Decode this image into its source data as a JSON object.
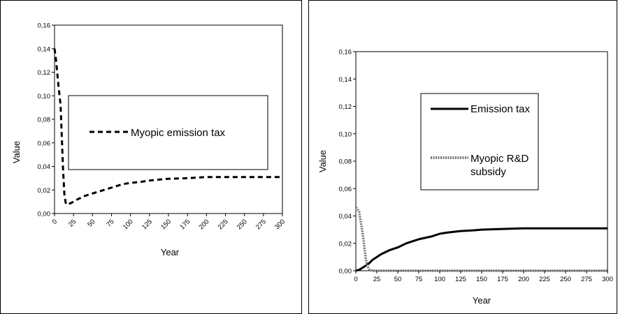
{
  "chart_data": [
    {
      "type": "line",
      "title": "",
      "xlabel": "Year",
      "ylabel": "Value",
      "xlim": [
        0,
        300
      ],
      "ylim": [
        0,
        0.16
      ],
      "x_ticks": [
        "0",
        "25",
        "50",
        "75",
        "100",
        "125",
        "150",
        "175",
        "200",
        "225",
        "250",
        "275",
        "300"
      ],
      "y_ticks": [
        "0,00",
        "0,02",
        "0,04",
        "0,06",
        "0,08",
        "0,10",
        "0,12",
        "0,14",
        "0,16"
      ],
      "legend_placement": "center",
      "grid": false,
      "series": [
        {
          "name": "Myopic emission tax",
          "style": "dashed",
          "color": "#000000",
          "x": [
            0,
            2,
            5,
            8,
            11,
            13,
            15,
            18,
            22,
            30,
            40,
            50,
            60,
            75,
            90,
            100,
            115,
            125,
            140,
            150,
            175,
            200,
            225,
            250,
            275,
            300
          ],
          "y": [
            0.14,
            0.13,
            0.11,
            0.092,
            0.04,
            0.016,
            0.008,
            0.008,
            0.009,
            0.012,
            0.015,
            0.017,
            0.019,
            0.022,
            0.025,
            0.026,
            0.027,
            0.028,
            0.029,
            0.0295,
            0.03,
            0.031,
            0.031,
            0.031,
            0.031,
            0.031
          ]
        }
      ]
    },
    {
      "type": "line",
      "title": "",
      "xlabel": "Year",
      "ylabel": "Value",
      "xlim": [
        0,
        300
      ],
      "ylim": [
        0,
        0.16
      ],
      "x_ticks": [
        "0",
        "25",
        "50",
        "75",
        "100",
        "125",
        "150",
        "175",
        "200",
        "225",
        "250",
        "275",
        "300"
      ],
      "y_ticks": [
        "0,00",
        "0,02",
        "0,04",
        "0,06",
        "0,08",
        "0,10",
        "0,12",
        "0,14",
        "0,16"
      ],
      "legend_placement": "center",
      "grid": false,
      "series": [
        {
          "name": "Emission tax",
          "style": "solid",
          "color": "#000000",
          "x": [
            0,
            5,
            10,
            15,
            20,
            25,
            30,
            40,
            50,
            60,
            70,
            75,
            90,
            100,
            110,
            125,
            140,
            150,
            175,
            200,
            225,
            250,
            275,
            300
          ],
          "y": [
            0.0,
            0.001,
            0.003,
            0.005,
            0.008,
            0.01,
            0.012,
            0.015,
            0.017,
            0.02,
            0.022,
            0.023,
            0.025,
            0.027,
            0.028,
            0.029,
            0.0295,
            0.03,
            0.0305,
            0.031,
            0.031,
            0.031,
            0.031,
            0.031
          ]
        },
        {
          "name": "Myopic R&D subsidy",
          "style": "dotted-thick",
          "color": "#777777",
          "x": [
            0,
            2,
            4,
            6,
            8,
            10,
            12,
            14,
            16,
            20,
            25,
            50,
            100,
            150,
            200,
            250,
            300
          ],
          "y": [
            0.046,
            0.045,
            0.043,
            0.035,
            0.028,
            0.018,
            0.008,
            0.003,
            0.001,
            0.0,
            0.0,
            0.0,
            0.0,
            0.0,
            0.0,
            0.0,
            0.0
          ]
        }
      ]
    }
  ]
}
